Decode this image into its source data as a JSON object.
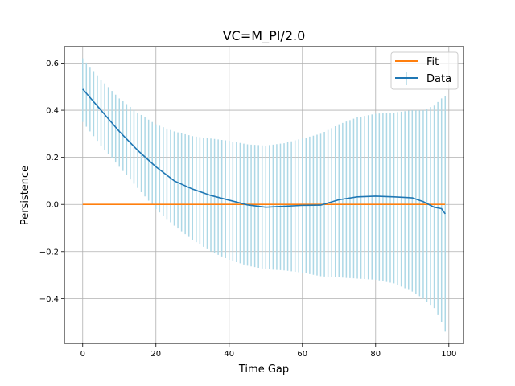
{
  "chart_data": {
    "type": "line",
    "title": "VC=M_PI/2.0",
    "xlabel": "Time Gap",
    "ylabel": "Persistence",
    "xlim": [
      -5,
      104
    ],
    "ylim": [
      -0.59,
      0.67
    ],
    "xticks": [
      0,
      20,
      40,
      60,
      80,
      100
    ],
    "xtick_labels": [
      "0",
      "20",
      "40",
      "60",
      "80",
      "100"
    ],
    "yticks": [
      -0.4,
      -0.2,
      0.0,
      0.2,
      0.4,
      0.6
    ],
    "ytick_labels": [
      "−0.4",
      "−0.2",
      "0.0",
      "0.2",
      "0.4",
      "0.6"
    ],
    "grid": true,
    "legend_position": "top-right",
    "series": [
      {
        "name": "Data",
        "color": "#1f77b4",
        "errorbar_color": "#add8e6",
        "x": [
          0,
          5,
          10,
          15,
          20,
          25,
          30,
          35,
          40,
          45,
          50,
          55,
          60,
          65,
          70,
          75,
          80,
          85,
          90,
          93,
          96,
          98,
          99
        ],
        "y": [
          0.49,
          0.4,
          0.31,
          0.23,
          0.16,
          0.1,
          0.065,
          0.038,
          0.018,
          -0.002,
          -0.012,
          -0.008,
          -0.004,
          -0.003,
          0.02,
          0.032,
          0.035,
          0.032,
          0.028,
          0.012,
          -0.012,
          -0.018,
          -0.04
        ],
        "yerr_upper": [
          0.62,
          0.53,
          0.45,
          0.39,
          0.34,
          0.31,
          0.29,
          0.28,
          0.27,
          0.255,
          0.25,
          0.26,
          0.28,
          0.3,
          0.34,
          0.37,
          0.385,
          0.39,
          0.4,
          0.4,
          0.42,
          0.45,
          0.46
        ],
        "yerr_lower": [
          0.35,
          0.25,
          0.16,
          0.07,
          -0.02,
          -0.09,
          -0.15,
          -0.2,
          -0.235,
          -0.26,
          -0.275,
          -0.28,
          -0.29,
          -0.305,
          -0.31,
          -0.315,
          -0.32,
          -0.335,
          -0.37,
          -0.4,
          -0.44,
          -0.5,
          -0.54
        ]
      },
      {
        "name": "Fit",
        "color": "#ff7f0e",
        "x": [
          0,
          99
        ],
        "y": [
          0.0,
          0.0
        ]
      }
    ]
  }
}
